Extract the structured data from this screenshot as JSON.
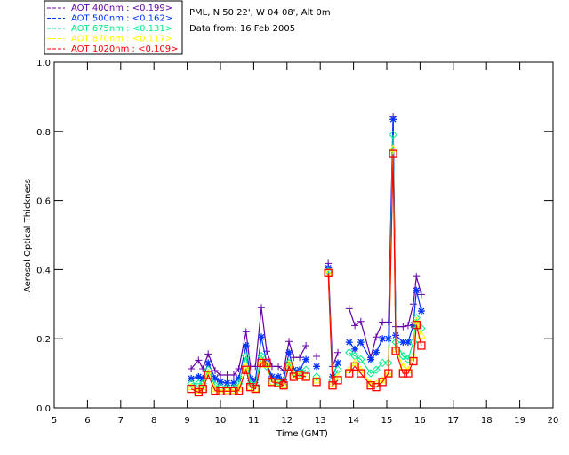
{
  "header": {
    "location": "PML, N 50 22', W 04 08', Alt 0m",
    "date": "Data from: 16 Feb 2005"
  },
  "colors": {
    "axis": "#000000",
    "background": "#ffffff"
  },
  "chart_data": {
    "type": "line",
    "title": "",
    "xlabel": "Time (GMT)",
    "ylabel": "Aerosol Optical Thickness",
    "xlim": [
      5,
      20
    ],
    "ylim": [
      0,
      1.0
    ],
    "xticks": [
      "5",
      "6",
      "7",
      "8",
      "9",
      "10",
      "11",
      "12",
      "13",
      "14",
      "15",
      "16",
      "17",
      "18",
      "19",
      "20"
    ],
    "yticks": [
      "0.0",
      "0.2",
      "0.4",
      "0.6",
      "0.8",
      "1.0"
    ],
    "legend_placement": "top-left outside",
    "segment_breaks_after_index": [
      20,
      21,
      24
    ],
    "x": [
      9.12,
      9.34,
      9.47,
      9.63,
      9.84,
      10.0,
      10.2,
      10.4,
      10.55,
      10.77,
      10.9,
      11.05,
      11.23,
      11.39,
      11.55,
      11.74,
      11.9,
      12.06,
      12.2,
      12.38,
      12.57,
      12.89,
      13.24,
      13.37,
      13.53,
      13.87,
      14.04,
      14.22,
      14.52,
      14.68,
      14.87,
      15.05,
      15.19,
      15.27,
      15.49,
      15.64,
      15.8,
      15.89,
      16.04
    ],
    "series": [
      {
        "name": "AOT  400nm : <0.199>",
        "color": "#6600aa",
        "marker": "plus",
        "values": [
          0.113,
          0.138,
          0.113,
          0.156,
          0.108,
          0.095,
          0.095,
          0.095,
          0.113,
          0.22,
          0.12,
          0.12,
          0.29,
          0.164,
          0.12,
          0.12,
          0.108,
          0.192,
          0.146,
          0.146,
          0.18,
          0.149,
          0.418,
          0.12,
          0.16,
          0.287,
          0.238,
          0.25,
          0.146,
          0.205,
          0.248,
          0.248,
          0.843,
          0.235,
          0.235,
          0.238,
          0.3,
          0.38,
          0.328
        ]
      },
      {
        "name": "AOT  500nm : <0.162>",
        "color": "#0033ff",
        "marker": "asterisk",
        "values": [
          0.085,
          0.09,
          0.085,
          0.13,
          0.085,
          0.075,
          0.072,
          0.072,
          0.085,
          0.18,
          0.085,
          0.08,
          0.205,
          0.13,
          0.09,
          0.09,
          0.08,
          0.16,
          0.11,
          0.11,
          0.14,
          0.12,
          0.405,
          0.09,
          0.13,
          0.19,
          0.17,
          0.19,
          0.14,
          0.16,
          0.2,
          0.2,
          0.835,
          0.21,
          0.19,
          0.19,
          0.24,
          0.34,
          0.28
        ]
      },
      {
        "name": "AOT  675nm : <0.131>",
        "color": "#00ee88",
        "marker": "diamond",
        "values": [
          0.07,
          0.07,
          0.07,
          0.11,
          0.065,
          0.06,
          0.058,
          0.058,
          0.07,
          0.15,
          0.07,
          0.065,
          0.15,
          0.12,
          0.075,
          0.075,
          0.065,
          0.13,
          0.1,
          0.1,
          0.11,
          0.09,
          0.395,
          0.08,
          0.11,
          0.16,
          0.15,
          0.14,
          0.1,
          0.11,
          0.13,
          0.13,
          0.79,
          0.19,
          0.15,
          0.14,
          0.19,
          0.26,
          0.23
        ]
      },
      {
        "name": "AOT  870nm : <0.117>",
        "color": "#ffff00",
        "marker": "triangle",
        "values": [
          0.06,
          0.05,
          0.06,
          0.1,
          0.055,
          0.052,
          0.05,
          0.05,
          0.055,
          0.12,
          0.06,
          0.055,
          0.135,
          0.125,
          0.075,
          0.072,
          0.065,
          0.125,
          0.095,
          0.095,
          0.09,
          0.08,
          0.39,
          0.07,
          0.09,
          0.11,
          0.13,
          0.11,
          0.07,
          0.07,
          0.08,
          0.1,
          0.75,
          0.17,
          0.12,
          0.11,
          0.15,
          0.25,
          0.21
        ]
      },
      {
        "name": "AOT 1020nm : <0.109>",
        "color": "#ff0000",
        "marker": "square",
        "values": [
          0.055,
          0.045,
          0.055,
          0.095,
          0.05,
          0.048,
          0.048,
          0.048,
          0.05,
          0.11,
          0.06,
          0.055,
          0.13,
          0.13,
          0.075,
          0.072,
          0.065,
          0.12,
          0.09,
          0.095,
          0.09,
          0.075,
          0.39,
          0.065,
          0.08,
          0.1,
          0.12,
          0.1,
          0.065,
          0.06,
          0.075,
          0.1,
          0.735,
          0.165,
          0.1,
          0.1,
          0.135,
          0.24,
          0.18
        ]
      }
    ]
  }
}
